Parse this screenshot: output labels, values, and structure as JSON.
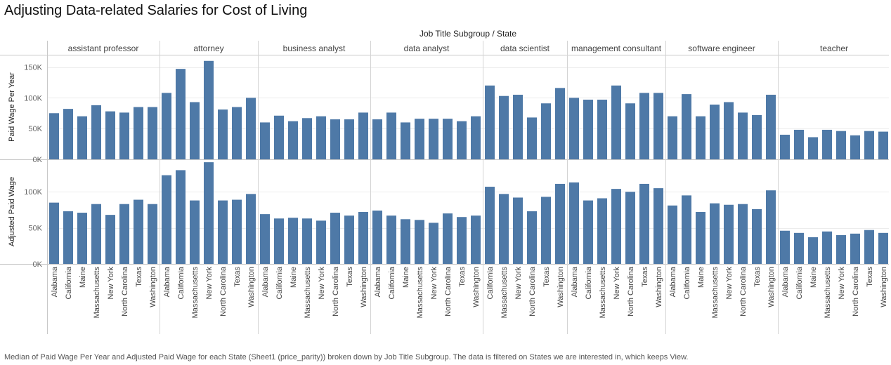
{
  "title": "Adjusting Data-related Salaries for Cost of Living",
  "caption": "Median of Paid Wage Per Year and Adjusted Paid Wage for each State (Sheet1 (price_parity)) broken down by Job Title Subgroup.  The data is filtered on States we are interested in, which keeps View.",
  "chart_data": {
    "type": "bar",
    "column_header": "Job Title Subgroup  /  State",
    "groups": [
      "assistant professor",
      "attorney",
      "business analyst",
      "data analyst",
      "data scientist",
      "management consultant",
      "software engineer",
      "teacher"
    ],
    "states": [
      [
        "Alabama",
        "California",
        "Maine",
        "Massachusetts",
        "New York",
        "North Carolina",
        "Texas",
        "Washington"
      ],
      [
        "Alabama",
        "California",
        "Massachusetts",
        "New York",
        "North Carolina",
        "Texas",
        "Washington"
      ],
      [
        "Alabama",
        "California",
        "Maine",
        "Massachusetts",
        "New York",
        "North Carolina",
        "Texas",
        "Washington"
      ],
      [
        "Alabama",
        "California",
        "Maine",
        "Massachusetts",
        "New York",
        "North Carolina",
        "Texas",
        "Washington"
      ],
      [
        "California",
        "Massachusetts",
        "New York",
        "North Carolina",
        "Texas",
        "Washington"
      ],
      [
        "Alabama",
        "California",
        "Massachusetts",
        "New York",
        "North Carolina",
        "Texas",
        "Washington"
      ],
      [
        "Alabama",
        "California",
        "Maine",
        "Massachusetts",
        "New York",
        "North Carolina",
        "Texas",
        "Washington"
      ],
      [
        "Alabama",
        "California",
        "Maine",
        "Massachusetts",
        "New York",
        "North Carolina",
        "Texas",
        "Washington"
      ]
    ],
    "series": [
      {
        "name": "Paid Wage Per Year",
        "ylim": [
          0,
          170000
        ],
        "ticks": [
          0,
          50000,
          100000,
          150000
        ],
        "tick_labels": [
          "0K",
          "50K",
          "100K",
          "150K"
        ],
        "values": [
          [
            75000,
            82000,
            70000,
            88000,
            78000,
            76000,
            85000,
            85000
          ],
          [
            108000,
            147000,
            93000,
            160000,
            81000,
            85000,
            100000
          ],
          [
            60000,
            71000,
            62000,
            67000,
            70000,
            65000,
            65000,
            76000
          ],
          [
            65000,
            76000,
            60000,
            66000,
            66000,
            66000,
            62000,
            70000
          ],
          [
            120000,
            103000,
            105000,
            68000,
            91000,
            116000
          ],
          [
            100000,
            97000,
            97000,
            120000,
            91000,
            108000,
            108000
          ],
          [
            70000,
            106000,
            70000,
            89000,
            93000,
            76000,
            72000,
            105000
          ],
          [
            40000,
            48000,
            36000,
            48000,
            46000,
            39000,
            46000,
            45000
          ]
        ]
      },
      {
        "name": "Adjusted Paid Wage",
        "ylim": [
          0,
          145000
        ],
        "ticks": [
          0,
          50000,
          100000
        ],
        "tick_labels": [
          "0K",
          "50K",
          "100K"
        ],
        "values": [
          [
            85000,
            73000,
            71000,
            83000,
            68000,
            83000,
            89000,
            83000
          ],
          [
            123000,
            130000,
            88000,
            141000,
            88000,
            89000,
            97000
          ],
          [
            69000,
            63000,
            64000,
            63000,
            60000,
            71000,
            67000,
            72000
          ],
          [
            74000,
            67000,
            62000,
            61000,
            57000,
            70000,
            65000,
            67000
          ],
          [
            107000,
            97000,
            92000,
            73000,
            93000,
            111000
          ],
          [
            113000,
            88000,
            91000,
            104000,
            100000,
            111000,
            105000
          ],
          [
            81000,
            95000,
            72000,
            84000,
            82000,
            83000,
            76000,
            102000
          ],
          [
            46000,
            43000,
            37000,
            45000,
            40000,
            42000,
            47000,
            43000
          ]
        ]
      }
    ],
    "grid": true,
    "bar_color": "#4e79a7"
  }
}
